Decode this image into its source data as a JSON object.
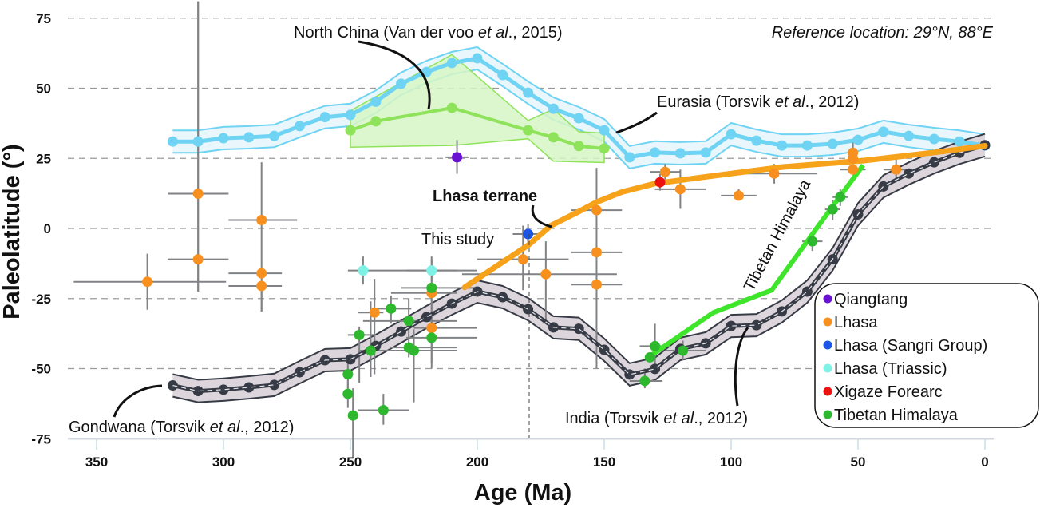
{
  "chart_data": {
    "type": "scatter",
    "xlabel": "Age (Ma)",
    "ylabel": "Paleolatitude (°)",
    "xlim": [
      360,
      0
    ],
    "ylim": [
      -75,
      80
    ],
    "x_ticks": [
      350,
      300,
      250,
      200,
      150,
      100,
      50,
      0
    ],
    "y_ticks": [
      75,
      50,
      25,
      0,
      -25,
      -50,
      -75
    ],
    "grid": "horizontal dashed",
    "legend_position": "bottom-right",
    "reference_note": {
      "prefix": "Reference location: 29°N, 88°E"
    },
    "colors": {
      "eurasia": "#6fd3f3",
      "north_china": "#8fe35a",
      "north_china_fill": "#d6f6c4",
      "india": "#363b45",
      "india_fill": "#ddd5dc",
      "lhasa_curve": "#f6a21a",
      "himalaya_curve": "#3ee52a",
      "errorbar": "#808285"
    },
    "curves": {
      "eurasia": {
        "label": {
          "pre": "Eurasia (Torsvik ",
          "it": "et al",
          "post": "., 2012)"
        },
        "ages": [
          320,
          310,
          300,
          290,
          280,
          270,
          260,
          250,
          240,
          230,
          220,
          210,
          200,
          190,
          180,
          170,
          160,
          150,
          140,
          130,
          120,
          110,
          100,
          90,
          80,
          70,
          60,
          50,
          40,
          30,
          20,
          10,
          0
        ],
        "lats": [
          31,
          31,
          32.2,
          32.5,
          33,
          36.5,
          39.7,
          40.5,
          45.2,
          51.6,
          55.8,
          59,
          60.7,
          54.7,
          48.4,
          42.7,
          39.3,
          35,
          25.4,
          27.1,
          26.8,
          27.1,
          33.6,
          31.3,
          29.6,
          29.6,
          30.2,
          31.6,
          34.5,
          33,
          31.9,
          31,
          29.6
        ],
        "band_halfwidth_deg": 4
      },
      "gondwana_india": {
        "gondwana_label": {
          "pre": "Gondwana (Torsvik ",
          "it": "et al",
          "post": "., 2012)"
        },
        "india_label": {
          "pre": "India (Torsvik ",
          "it": "et al",
          "post": "., 2012)"
        },
        "ages": [
          320,
          310,
          300,
          290,
          280,
          270,
          260,
          250,
          240,
          230,
          220,
          210,
          200,
          190,
          180,
          170,
          160,
          150,
          140,
          130,
          120,
          110,
          100,
          90,
          80,
          70,
          60,
          50,
          40,
          30,
          20,
          10,
          0
        ],
        "lats": [
          -56,
          -58,
          -57.5,
          -56.7,
          -55.8,
          -51.3,
          -47,
          -46.7,
          -41.9,
          -36.8,
          -31.6,
          -26.8,
          -22.5,
          -24.5,
          -28.8,
          -35.3,
          -35.8,
          -43.3,
          -52.1,
          -50.1,
          -43,
          -41,
          -34.8,
          -34.5,
          -29.6,
          -22.5,
          -11,
          5,
          15,
          19.6,
          23.6,
          27,
          29.7
        ],
        "band_halfwidth_deg": 4
      },
      "north_china": {
        "label": {
          "pre": "North China (Van der voo ",
          "it": "et al",
          "post": "., 2015)"
        },
        "ages": [
          250,
          240,
          210,
          180,
          170,
          160,
          150
        ],
        "lats": [
          35,
          38.2,
          43,
          35,
          32.5,
          29.4,
          28.5
        ],
        "envelope_upper": [
          [
            250,
            42
          ],
          [
            210,
            62
          ],
          [
            180,
            38.5
          ],
          [
            170,
            42.5
          ],
          [
            160,
            34.5
          ],
          [
            150,
            34
          ]
        ],
        "envelope_lower": [
          [
            250,
            29
          ],
          [
            210,
            29.6
          ],
          [
            180,
            32
          ],
          [
            170,
            24
          ],
          [
            150,
            23.5
          ]
        ]
      },
      "lhasa_terrane": {
        "label": "Lhasa terrane",
        "points": [
          [
            205,
            -21
          ],
          [
            190,
            -12
          ],
          [
            180,
            -6
          ],
          [
            171,
            1
          ],
          [
            160,
            6
          ],
          [
            153,
            9.4
          ],
          [
            143,
            13
          ],
          [
            130,
            16
          ],
          [
            111,
            18.3
          ],
          [
            80,
            21.9
          ],
          [
            48,
            24.2
          ],
          [
            17,
            27.4
          ],
          [
            0,
            29.5
          ]
        ]
      },
      "tibetan_himalaya": {
        "label": "Tibetan Himalaya",
        "points": [
          [
            131,
            -45
          ],
          [
            107,
            -30
          ],
          [
            84,
            -22
          ],
          [
            65,
            1.7
          ],
          [
            48,
            22.6
          ]
        ]
      }
    },
    "this_study": {
      "label": "This study",
      "age": 180
    },
    "series": [
      {
        "name": "Qiangtang",
        "color": "#6a12d2",
        "points": [
          [
            208,
            25.4,
            212.5,
            203.5,
            19.5,
            31.5
          ]
        ]
      },
      {
        "name": "Lhasa",
        "color": "#f7901e",
        "points": [
          [
            330,
            -19,
            359,
            299,
            -29,
            -9
          ],
          [
            310,
            12.4,
            322,
            298,
            -22.5,
            81
          ],
          [
            310,
            -11,
            322,
            298,
            -22.5,
            81
          ],
          [
            285,
            3,
            298,
            271,
            -29.6,
            23.6
          ],
          [
            285,
            -16,
            298,
            277,
            -16,
            -16
          ],
          [
            285,
            -20.5,
            298,
            277,
            -29.6,
            -20.5
          ],
          [
            240.5,
            -30,
            247,
            237,
            -52,
            -18
          ],
          [
            218,
            -23,
            234,
            208,
            -50,
            -10
          ],
          [
            218,
            -35.5,
            225,
            200,
            -35.5,
            -35.5
          ],
          [
            182,
            -11,
            200,
            164,
            -22,
            1
          ],
          [
            173,
            -16.3,
            206,
            145,
            -33,
            -4.6
          ],
          [
            153,
            6.5,
            163,
            143,
            -50,
            21.6
          ],
          [
            153,
            -8.5,
            163,
            143,
            -8.5,
            -8.5
          ],
          [
            153,
            -20,
            163,
            143,
            -20,
            -20
          ],
          [
            126,
            20.2,
            132,
            120,
            17,
            23
          ],
          [
            120,
            14,
            130,
            110,
            7,
            21
          ],
          [
            97,
            11.7,
            104,
            90,
            10,
            14
          ],
          [
            83,
            19.6,
            100,
            66,
            16,
            23
          ],
          [
            52,
            27,
            52,
            52,
            21,
            31
          ],
          [
            52,
            25,
            52,
            52,
            25,
            25
          ],
          [
            52,
            21,
            57,
            47,
            21,
            21
          ],
          [
            35,
            21,
            40,
            30,
            17,
            25
          ]
        ]
      },
      {
        "name": "Lhasa (Sangri Group)",
        "color": "#1a55e3",
        "points": [
          [
            180,
            -2,
            186,
            174,
            -5.5,
            1.5
          ]
        ]
      },
      {
        "name": "Lhasa (Triassic)",
        "color": "#7ff2e6",
        "points": [
          [
            245,
            -15,
            251,
            200,
            -20,
            -10
          ],
          [
            218,
            -15,
            228,
            208,
            -19,
            -11
          ]
        ]
      },
      {
        "name": "Xigaze Forearc",
        "color": "#ee1111",
        "points": [
          [
            128,
            16.5,
            131,
            125,
            13.5,
            19.5
          ]
        ]
      },
      {
        "name": "Tibetan Himalaya",
        "color": "#2db82d",
        "points": [
          [
            251,
            -52,
            253,
            249,
            -57,
            -48
          ],
          [
            251,
            -59,
            251,
            251,
            -64,
            -50
          ],
          [
            249,
            -66.7,
            249,
            249,
            -82,
            -57
          ],
          [
            237,
            -64.8,
            247,
            227,
            -70,
            -59
          ],
          [
            246.5,
            -38,
            251,
            240,
            -55,
            -35
          ],
          [
            242,
            -43.6,
            247,
            208,
            -53,
            -26
          ],
          [
            234,
            -28.6,
            240,
            226,
            -34,
            -24
          ],
          [
            227,
            -33,
            245,
            208,
            -46,
            -25
          ],
          [
            227,
            -42.5,
            234,
            208,
            -42.5,
            -42.5
          ],
          [
            225,
            -43.6,
            225,
            225,
            -62,
            -36
          ],
          [
            218,
            -21.2,
            230,
            200,
            -21.2,
            -21.2
          ],
          [
            218,
            -39,
            228,
            200,
            -48,
            -25
          ],
          [
            130,
            -42,
            136,
            124,
            -50,
            -34
          ],
          [
            132,
            -46,
            132,
            132,
            -46,
            -46
          ],
          [
            134,
            -54.4,
            140,
            127,
            -57,
            -50
          ],
          [
            119,
            -43.6,
            126,
            110,
            -47,
            -40
          ],
          [
            68,
            -4.6,
            72,
            64,
            -8,
            -1
          ],
          [
            60,
            6.8,
            63,
            57,
            3,
            10
          ],
          [
            57,
            11.2,
            60,
            54,
            8,
            14
          ]
        ]
      }
    ]
  }
}
